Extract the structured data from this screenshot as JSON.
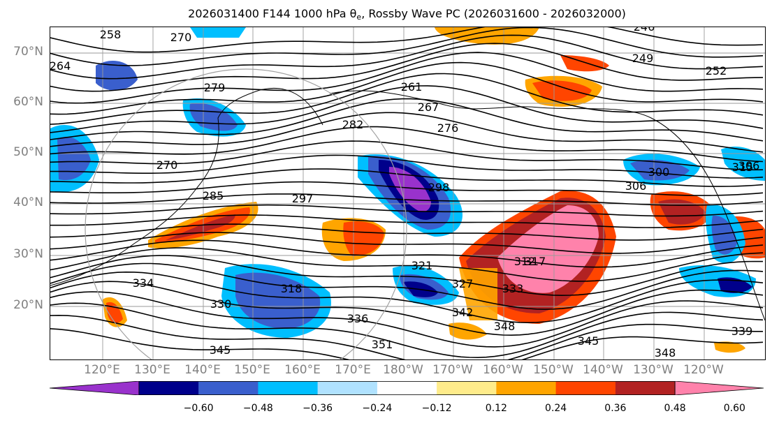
{
  "title": {
    "prefix": "2026031400 F144 1000 hPa θ",
    "subscript": "e",
    "suffix": ", Rossby Wave PC (2026031600 - 2026032000)"
  },
  "lat_labels": [
    "70°N",
    "60°N",
    "50°N",
    "40°N",
    "30°N",
    "20°N"
  ],
  "lon_labels": [
    "120°E",
    "130°E",
    "140°E",
    "150°E",
    "160°E",
    "170°E",
    "180°W",
    "170°W",
    "160°W",
    "150°W",
    "140°W",
    "130°W",
    "120°W"
  ],
  "contour_labels": [
    "246",
    "249",
    "252",
    "258",
    "264",
    "270",
    "279",
    "270",
    "261",
    "267",
    "276",
    "282",
    "285",
    "297",
    "298",
    "300",
    "306",
    "306",
    "315",
    "312",
    "317",
    "318",
    "321",
    "327",
    "330",
    "333",
    "334",
    "336",
    "339",
    "342",
    "345",
    "345",
    "348",
    "348",
    "351"
  ],
  "colorbar": {
    "ticks": [
      "−0.60",
      "−0.48",
      "−0.36",
      "−0.24",
      "−0.12",
      "0.12",
      "0.24",
      "0.36",
      "0.48",
      "0.60"
    ],
    "colors": [
      "#9932cc",
      "#00008b",
      "#3a5fcd",
      "#00bfff",
      "#b0e2ff",
      "#ffffff",
      "#ffec8b",
      "#ffa500",
      "#ff4500",
      "#b22222",
      "#ff82ab"
    ]
  }
}
